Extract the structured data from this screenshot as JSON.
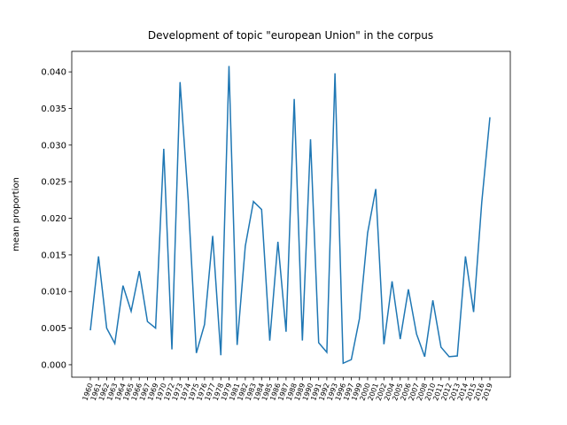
{
  "chart_data": {
    "type": "line",
    "title": "Development of topic \"european Union\" in the corpus",
    "y_label": "mean proportion",
    "categories": [
      "1960",
      "1961",
      "1962",
      "1963",
      "1964",
      "1965",
      "1966",
      "1967",
      "1969",
      "1970",
      "1972",
      "1973",
      "1974",
      "1975",
      "1976",
      "1977",
      "1978",
      "1979",
      "1981",
      "1982",
      "1983",
      "1984",
      "1985",
      "1986",
      "1987",
      "1988",
      "1989",
      "1990",
      "1991",
      "1992",
      "1993",
      "1996",
      "1997",
      "1999",
      "2000",
      "2001",
      "2002",
      "2004",
      "2005",
      "2006",
      "2007",
      "2008",
      "2010",
      "2011",
      "2012",
      "2013",
      "2014",
      "2015",
      "2016",
      "2019"
    ],
    "series": [
      {
        "name": "mean proportion",
        "color": "#1f77b4",
        "values": [
          0.0047,
          0.0148,
          0.005,
          0.0029,
          0.0108,
          0.0073,
          0.0128,
          0.0059,
          0.005,
          0.0295,
          0.0021,
          0.0386,
          0.0225,
          0.0016,
          0.0055,
          0.0176,
          0.0013,
          0.0408,
          0.0027,
          0.0162,
          0.0223,
          0.0212,
          0.0033,
          0.0168,
          0.0045,
          0.0363,
          0.0033,
          0.0308,
          0.003,
          0.0017,
          0.0398,
          0.0002,
          0.0007,
          0.0063,
          0.018,
          0.024,
          0.0028,
          0.0114,
          0.0035,
          0.0103,
          0.0042,
          0.0011,
          0.0088,
          0.0024,
          0.0011,
          0.0012,
          0.0148,
          0.0072,
          0.0222,
          0.0338
        ]
      }
    ],
    "ylim": [
      -0.0017,
      0.0428
    ],
    "yticks": [
      {
        "value": 0,
        "label": "0.000"
      },
      {
        "value": 0.005,
        "label": "0.005"
      },
      {
        "value": 0.01,
        "label": "0.010"
      },
      {
        "value": 0.015,
        "label": "0.015"
      },
      {
        "value": 0.02,
        "label": "0.020"
      },
      {
        "value": 0.025,
        "label": "0.025"
      },
      {
        "value": 0.03,
        "label": "0.030"
      },
      {
        "value": 0.035,
        "label": "0.035"
      },
      {
        "value": 0.04,
        "label": "0.040"
      }
    ],
    "grid": false
  }
}
